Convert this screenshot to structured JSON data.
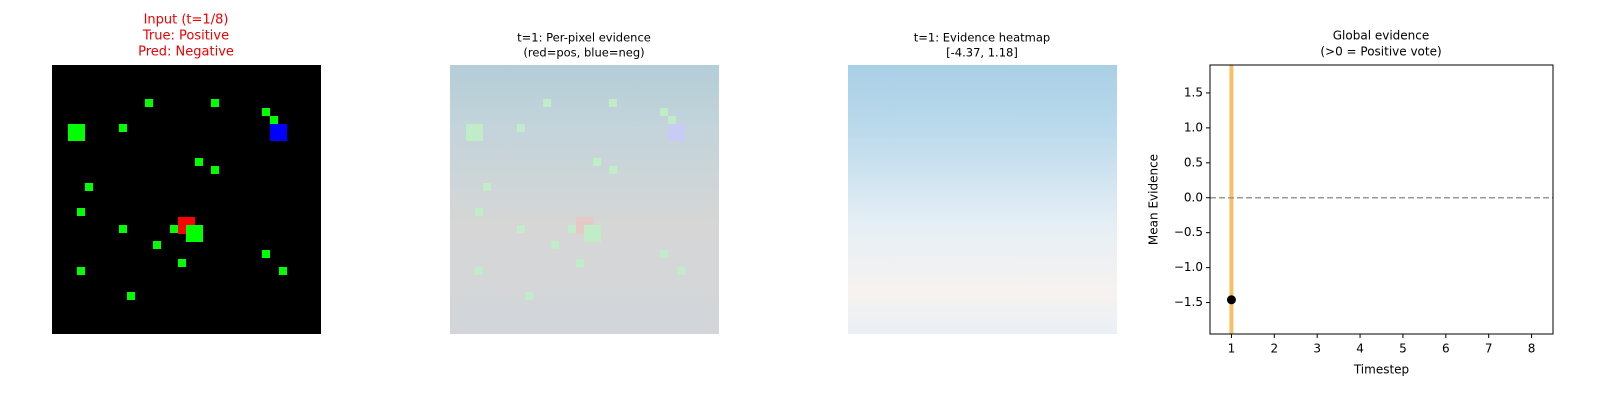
{
  "chart_data": [
    {
      "type": "image",
      "title": [
        "Input (t=1/8)",
        "True: Positive",
        "Pred: Negative"
      ]
    },
    {
      "type": "image",
      "title": [
        "t=1: Per-pixel evidence",
        "(red=pos, blue=neg)"
      ]
    },
    {
      "type": "heatmap",
      "title": [
        "t=1: Evidence heatmap",
        "[-4.37, 1.18]"
      ]
    },
    {
      "type": "scatter",
      "title": [
        "Global evidence",
        "(>0 = Positive vote)"
      ],
      "x_label": "Timestep",
      "y_label": "Mean Evidence",
      "x": [
        1
      ],
      "series": [
        {
          "color": "#000000",
          "values": [
            -1.46
          ]
        }
      ],
      "vline_x": 1,
      "vline_color": "#f5b041",
      "hline_y": 0,
      "hline_color": "#999999",
      "xlim": [
        0.5,
        8.5
      ],
      "ylim": [
        -1.95,
        1.9
      ],
      "xticks": [
        1,
        2,
        3,
        4,
        5,
        6,
        7,
        8
      ],
      "yticks": [
        {
          "value": -1.5,
          "label": "−1.5"
        },
        {
          "value": -1,
          "label": "−1.0"
        },
        {
          "value": -0.5,
          "label": "−0.5"
        },
        {
          "value": 0,
          "label": "0.0"
        },
        0.5,
        {
          "value": 1,
          "label": "1.0"
        },
        1.5
      ]
    }
  ]
}
